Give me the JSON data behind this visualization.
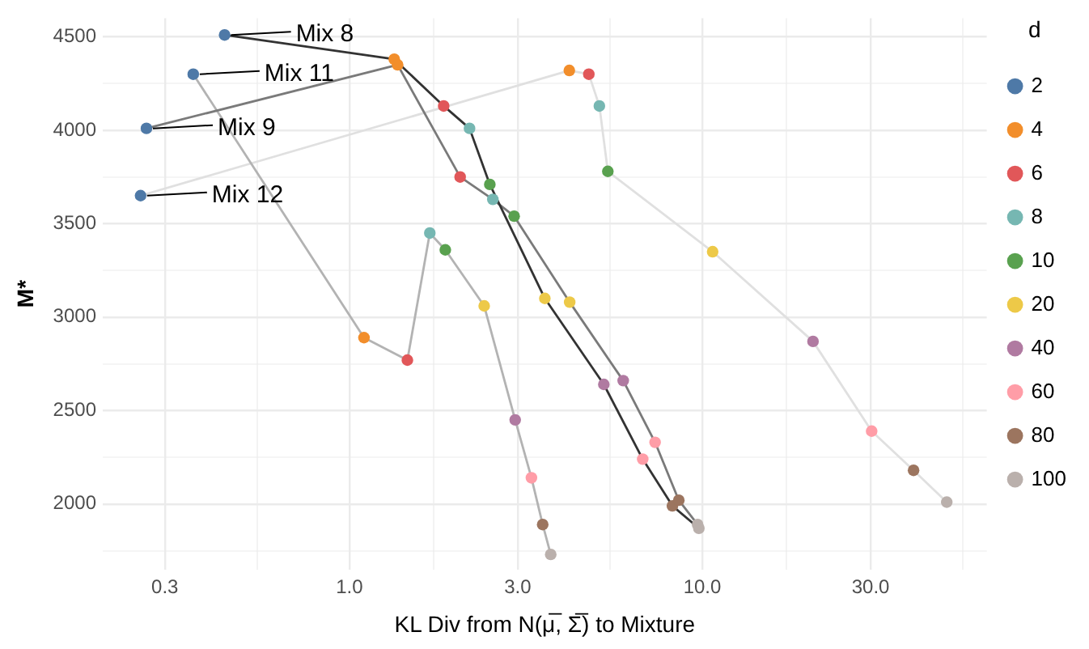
{
  "chart_data": {
    "type": "scatter",
    "xlabel": "KL Div from N(μ̅, Σ̅) to Mixture",
    "ylabel": "M*",
    "legend_title": "d",
    "legend": "right",
    "grid": true,
    "log": "x",
    "marker": "circle",
    "xlim": [
      0.2,
      64
    ],
    "xticks": [
      0.3,
      {
        "value": 0.548,
        "label": null
      },
      {
        "value": 1,
        "label": "1.0"
      },
      {
        "value": 1.73,
        "label": null
      },
      {
        "value": 3,
        "label": "3.0"
      },
      {
        "value": 5.48,
        "label": null
      },
      {
        "value": 10,
        "label": "10.0"
      },
      {
        "value": 17.3,
        "label": null
      },
      {
        "value": 30,
        "label": "30.0"
      },
      {
        "value": 54.8,
        "label": null
      }
    ],
    "ylim": [
      1650,
      4600
    ],
    "yticks": [
      {
        "value": 1750,
        "label": null
      },
      2000,
      {
        "value": 2250,
        "label": null
      },
      2500,
      {
        "value": 2750,
        "label": null
      },
      3000,
      {
        "value": 3250,
        "label": null
      },
      3500,
      {
        "value": 3750,
        "label": null
      },
      4000,
      {
        "value": 4250,
        "label": null
      },
      4500
    ],
    "series": [
      {
        "name": "Mix 8",
        "type": "line",
        "marker": "none",
        "color": "#333333",
        "x": [
          0.443,
          1.34,
          1.85,
          2.19,
          2.5,
          3.58,
          5.26,
          6.78,
          8.23,
          9.78
        ],
        "values": [
          4510,
          4380,
          4130,
          4010,
          3710,
          3100,
          2640,
          2240,
          1990,
          1870
        ]
      },
      {
        "name": "Mix 9",
        "type": "line",
        "marker": "none",
        "color": "#7a7a7a",
        "x": [
          0.266,
          1.37,
          2.06,
          2.55,
          2.93,
          4.21,
          5.97,
          7.35,
          8.58,
          9.7
        ],
        "values": [
          4010,
          4350,
          3750,
          3630,
          3540,
          3080,
          2660,
          2330,
          2020,
          1890
        ]
      },
      {
        "name": "Mix 11",
        "type": "line",
        "marker": "none",
        "color": "#b3b3b3",
        "x": [
          0.361,
          1.1,
          1.46,
          1.69,
          1.87,
          2.41,
          2.95,
          3.28,
          3.53,
          3.72
        ],
        "values": [
          4300,
          2890,
          2770,
          3450,
          3360,
          3060,
          2450,
          2140,
          1890,
          1730
        ]
      },
      {
        "name": "Mix 12",
        "type": "line",
        "marker": "none",
        "color": "#e0e0e0",
        "x": [
          0.256,
          4.2,
          4.77,
          5.11,
          5.4,
          10.7,
          20.6,
          30.2,
          39.7,
          49.3
        ],
        "values": [
          3650,
          4320,
          4300,
          4130,
          3780,
          3350,
          2870,
          2390,
          2180,
          2010
        ]
      },
      {
        "name": "2",
        "color": "#4e79a7",
        "x": [
          0.443,
          0.266,
          0.361,
          0.256
        ],
        "values": [
          4510,
          4010,
          4300,
          3650
        ]
      },
      {
        "name": "4",
        "color": "#f28e2b",
        "x": [
          1.34,
          1.37,
          1.1,
          4.2
        ],
        "values": [
          4380,
          4350,
          2890,
          4320
        ]
      },
      {
        "name": "6",
        "color": "#e15759",
        "x": [
          1.85,
          2.06,
          1.46,
          4.77
        ],
        "values": [
          4130,
          3750,
          2770,
          4300
        ]
      },
      {
        "name": "8",
        "color": "#76b7b2",
        "x": [
          2.19,
          2.55,
          1.69,
          5.11
        ],
        "values": [
          4010,
          3630,
          3450,
          4130
        ]
      },
      {
        "name": "10",
        "color": "#59a14f",
        "x": [
          2.5,
          2.93,
          1.87,
          5.4
        ],
        "values": [
          3710,
          3540,
          3360,
          3780
        ]
      },
      {
        "name": "20",
        "color": "#edc948",
        "x": [
          3.58,
          4.21,
          2.41,
          10.7
        ],
        "values": [
          3100,
          3080,
          3060,
          3350
        ]
      },
      {
        "name": "40",
        "color": "#b07aa1",
        "x": [
          5.26,
          5.97,
          2.95,
          20.6
        ],
        "values": [
          2640,
          2660,
          2450,
          2870
        ]
      },
      {
        "name": "60",
        "color": "#ff9da7",
        "x": [
          6.78,
          7.35,
          3.28,
          30.2
        ],
        "values": [
          2240,
          2330,
          2140,
          2390
        ]
      },
      {
        "name": "80",
        "color": "#9c755f",
        "x": [
          8.23,
          8.58,
          3.53,
          39.7
        ],
        "values": [
          1990,
          2020,
          1890,
          2180
        ]
      },
      {
        "name": "100",
        "color": "#bab0ac",
        "x": [
          9.78,
          9.7,
          3.72,
          49.3
        ],
        "values": [
          1870,
          1890,
          1730,
          2010
        ]
      }
    ]
  }
}
